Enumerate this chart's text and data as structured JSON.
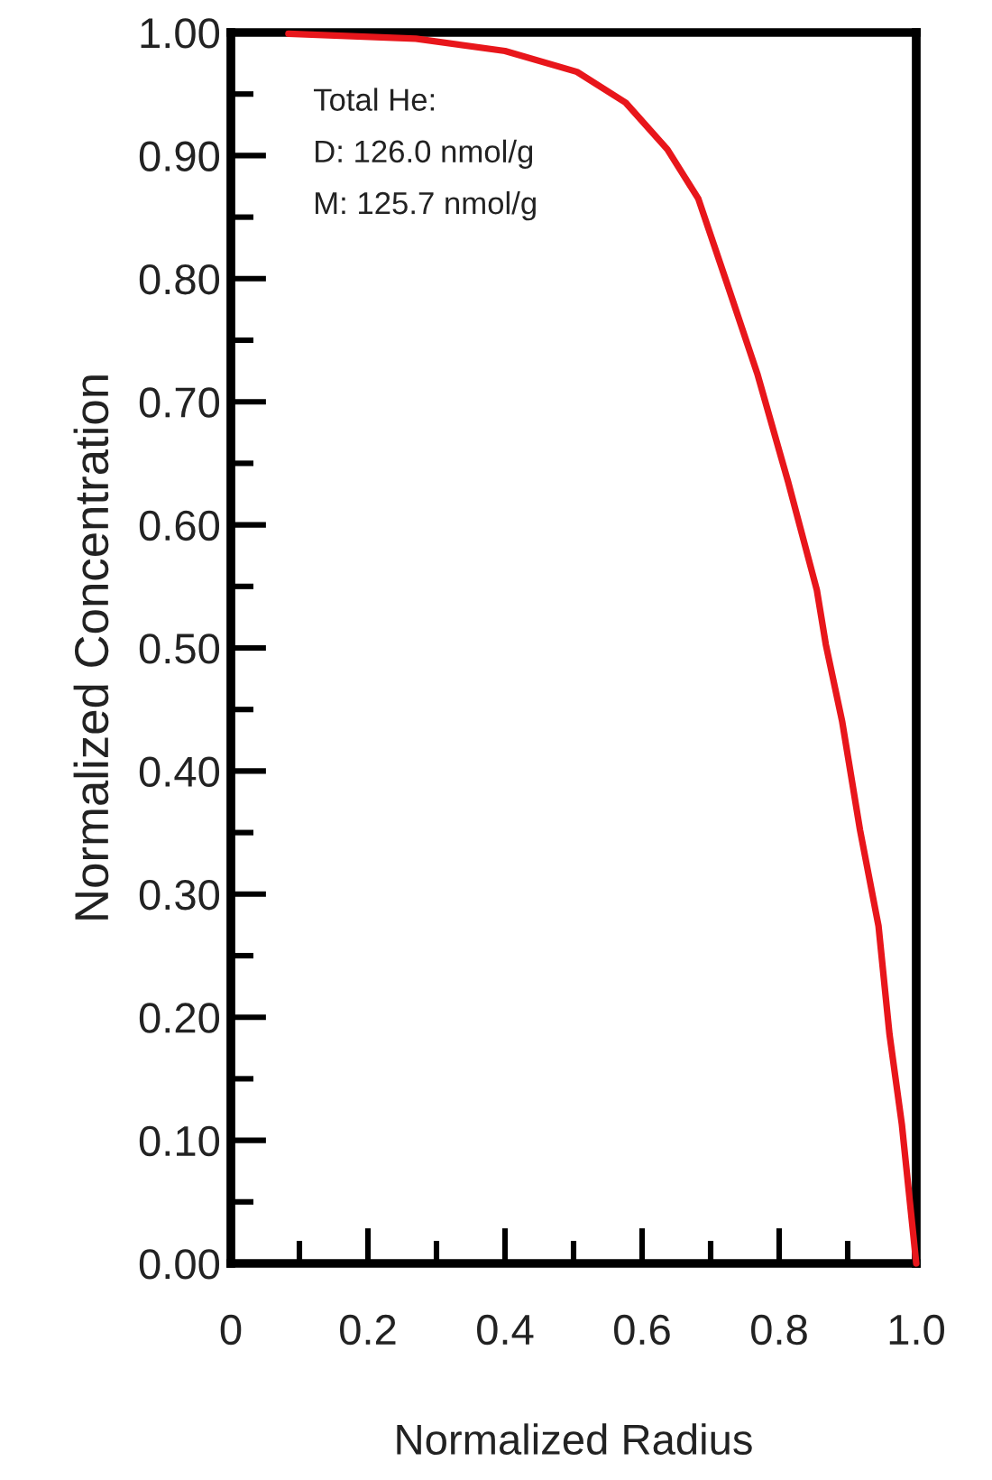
{
  "chart_data": {
    "type": "line",
    "xlabel": "Normalized Radius",
    "ylabel": "Normalized Concentration",
    "x": [
      0.084,
      0.27,
      0.4,
      0.505,
      0.576,
      0.637,
      0.682,
      0.724,
      0.768,
      0.813,
      0.855,
      0.868,
      0.892,
      0.918,
      0.945,
      0.961,
      0.979,
      1.0
    ],
    "series": [
      {
        "color": "#e8161b",
        "values": [
          0.999,
          0.995,
          0.985,
          0.968,
          0.943,
          0.905,
          0.865,
          0.796,
          0.723,
          0.635,
          0.547,
          0.503,
          0.44,
          0.352,
          0.274,
          0.186,
          0.113,
          0.0
        ]
      }
    ],
    "xlim": [
      0,
      1.0
    ],
    "ylim": [
      0,
      1.0
    ],
    "xticks": [
      0,
      {
        "value": 0.1,
        "label": null
      },
      0.2,
      {
        "value": 0.3,
        "label": null
      },
      0.4,
      {
        "value": 0.5,
        "label": null
      },
      0.6,
      {
        "value": 0.7,
        "label": null
      },
      0.8,
      {
        "value": 0.9,
        "label": null
      },
      {
        "value": 1.0,
        "label": "1.0"
      }
    ],
    "yticks": [
      {
        "value": 0,
        "label": "0.00"
      },
      {
        "value": 0.05,
        "label": null
      },
      {
        "value": 0.1,
        "label": "0.10"
      },
      {
        "value": 0.15,
        "label": null
      },
      {
        "value": 0.2,
        "label": "0.20"
      },
      {
        "value": 0.25,
        "label": null
      },
      {
        "value": 0.3,
        "label": "0.30"
      },
      {
        "value": 0.35,
        "label": null
      },
      {
        "value": 0.4,
        "label": "0.40"
      },
      {
        "value": 0.45,
        "label": null
      },
      {
        "value": 0.5,
        "label": "0.50"
      },
      {
        "value": 0.55,
        "label": null
      },
      {
        "value": 0.6,
        "label": "0.60"
      },
      {
        "value": 0.65,
        "label": null
      },
      {
        "value": 0.7,
        "label": "0.70"
      },
      {
        "value": 0.75,
        "label": null
      },
      {
        "value": 0.8,
        "label": "0.80"
      },
      {
        "value": 0.85,
        "label": null
      },
      {
        "value": 0.9,
        "label": "0.90"
      },
      {
        "value": 0.95,
        "label": null
      },
      {
        "value": 1.0,
        "label": "1.00"
      }
    ],
    "annotations": [
      "Total He:",
      "D: 126.0 nmol/g",
      "M: 125.7 nmol/g"
    ],
    "grid": false,
    "legend": false,
    "marker": "none",
    "line_style": "solid"
  }
}
